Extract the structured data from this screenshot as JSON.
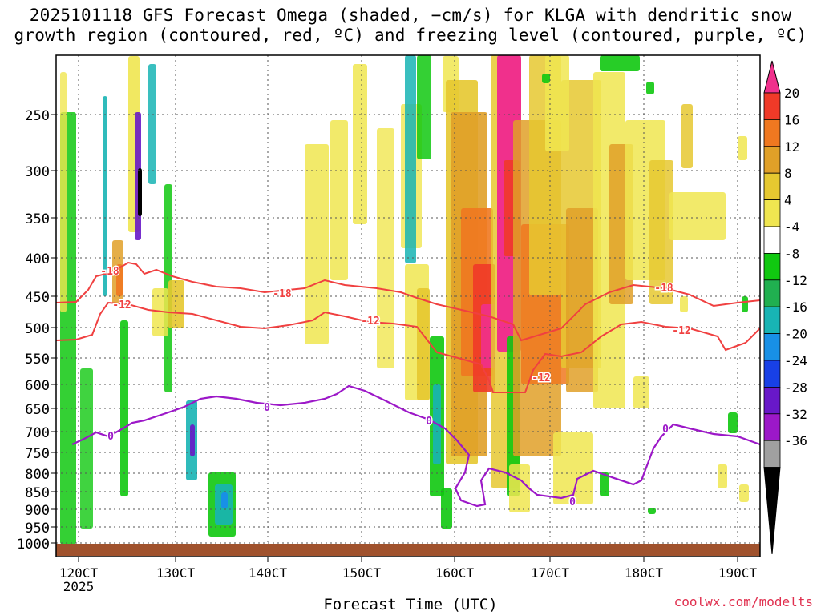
{
  "chart_data": {
    "type": "heatmap",
    "title": "2025101118 GFS Forecast Omega (shaded, −cm/s) for KLGA with dendritic snow growth region (contoured, red, ºC) and freezing level (contoured, purple, ºC)",
    "title_line1": "2025101118 GFS Forecast Omega (shaded, −cm/s) for KLGA with dendritic snow",
    "title_line2": "growth region (contoured, red, ºC) and freezing level (contoured, purple, ºC)",
    "xlabel": "Forecast Time (UTC)",
    "year_label": "2025",
    "credit": "coolwx.com/modelts",
    "x_ticks": [
      "120CT",
      "130CT",
      "140CT",
      "150CT",
      "160CT",
      "170CT",
      "180CT",
      "190CT"
    ],
    "y_ticks": [
      "250",
      "300",
      "350",
      "400",
      "450",
      "500",
      "550",
      "600",
      "650",
      "700",
      "750",
      "800",
      "850",
      "900",
      "950",
      "1000"
    ],
    "colorbar": {
      "labels": [
        "20",
        "16",
        "12",
        "8",
        "4",
        "-4",
        "-8",
        "-12",
        "-16",
        "-20",
        "-24",
        "-28",
        "-32",
        "-36"
      ],
      "colors": [
        "#f0308c",
        "#f03a28",
        "#f07820",
        "#e0a028",
        "#e6c830",
        "#f0e650",
        "#ffffff",
        "#10c810",
        "#20b050",
        "#18b4b4",
        "#1890e6",
        "#1840e6",
        "#6818c8",
        "#9c18c8",
        "#a0a0a0",
        "#000000"
      ]
    },
    "contour_labels": {
      "dgz_top": "-18",
      "dgz_bottom": "-12",
      "freezing": "0"
    }
  }
}
